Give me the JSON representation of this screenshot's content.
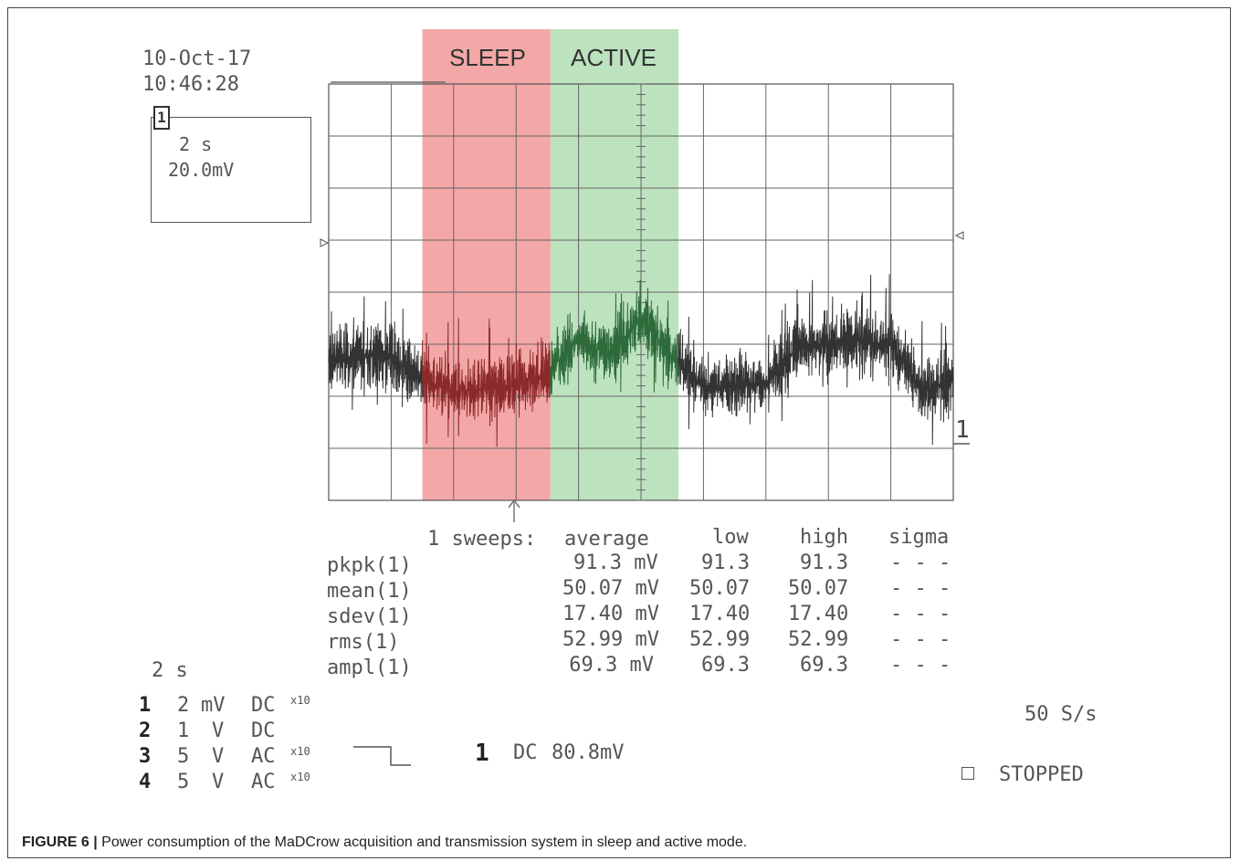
{
  "timestamp": {
    "date": "10-Oct-17",
    "time": "10:46:28"
  },
  "settings_box": {
    "channel": "1",
    "timebase": "2 s",
    "volts_div": "20.0mV"
  },
  "modes": {
    "sleep_label": "SLEEP",
    "active_label": "ACTIVE",
    "sleep_color": "#f08a8a",
    "active_color": "#a5d8a8"
  },
  "trace_colors": {
    "normal": "#333333",
    "sleep": "#8b2a2a",
    "active": "#2e6b3b"
  },
  "channel_marker_right": "1",
  "measurements": {
    "header": {
      "sweeps": "1 sweeps:",
      "average": "average",
      "low": "low",
      "high": "high",
      "sigma": "sigma"
    },
    "rows": [
      {
        "name": "pkpk(1)",
        "average": "91.3 mV",
        "low": "91.3",
        "high": "91.3",
        "sigma": "- - -"
      },
      {
        "name": "mean(1)",
        "average": "50.07 mV",
        "low": "50.07",
        "high": "50.07",
        "sigma": "- - -"
      },
      {
        "name": "sdev(1)",
        "average": "17.40 mV",
        "low": "17.40",
        "high": "17.40",
        "sigma": "- - -"
      },
      {
        "name": "rms(1)",
        "average": "52.99 mV",
        "low": "52.99",
        "high": "52.99",
        "sigma": "- - -"
      },
      {
        "name": "ampl(1)",
        "average": "69.3 mV",
        "low": "69.3",
        "high": "69.3",
        "sigma": "- - -"
      }
    ]
  },
  "timebase_bottom": "2 s",
  "channels": [
    {
      "num": "1",
      "scale": "2",
      "unit": "mV",
      "coupling": "DC",
      "probe": "x10"
    },
    {
      "num": "2",
      "scale": "1",
      "unit": "V",
      "coupling": "DC",
      "probe": ""
    },
    {
      "num": "3",
      "scale": "5",
      "unit": "V",
      "coupling": "AC",
      "probe": "x10"
    },
    {
      "num": "4",
      "scale": "5",
      "unit": "V",
      "coupling": "AC",
      "probe": "x10"
    }
  ],
  "trigger": {
    "channel": "1",
    "coupling": "DC",
    "level": "80.8mV"
  },
  "sample_rate": "50 S/s",
  "status": "STOPPED",
  "caption": {
    "label": "FIGURE 6 |",
    "text": "Power consumption of the MaDCrow acquisition and transmission system in sleep and active mode."
  },
  "chart_data": {
    "type": "line",
    "x_unit": "s",
    "y_unit": "mV",
    "x_per_div": 2,
    "y_per_div": 20.0,
    "x_divisions": 10,
    "y_divisions": 8,
    "xlim": [
      0,
      20
    ],
    "grid": true,
    "regions": [
      {
        "name": "SLEEP",
        "x_start": 3.0,
        "x_end": 7.1
      },
      {
        "name": "ACTIVE",
        "x_start": 7.1,
        "x_end": 11.2
      }
    ],
    "series": [
      {
        "x": [
          0,
          1,
          2,
          3,
          4,
          5,
          6,
          7,
          8,
          9,
          10,
          11,
          12,
          13,
          14,
          15,
          16,
          17,
          18,
          19,
          20
        ],
        "values": [
          54,
          56,
          55,
          46,
          42,
          43,
          44,
          49,
          62,
          56,
          70,
          55,
          44,
          44,
          45,
          58,
          60,
          61,
          60,
          42,
          46
        ]
      }
    ]
  }
}
